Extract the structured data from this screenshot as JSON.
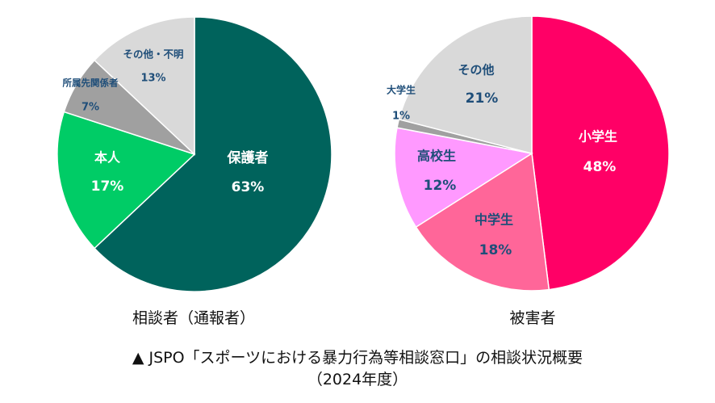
{
  "chart_data": [
    {
      "type": "pie",
      "title": "相談者（通報者）",
      "slices": [
        {
          "label": "保護者",
          "value": 63,
          "value_label": "63%",
          "color": "#00635C",
          "label_color": "#FFFFFF"
        },
        {
          "label": "本人",
          "value": 17,
          "value_label": "17%",
          "color": "#00CC66",
          "label_color": "#FFFFFF"
        },
        {
          "label": "所属先関係者",
          "value": 7,
          "value_label": "7%",
          "color": "#A0A0A0",
          "label_color": "#1F4E79"
        },
        {
          "label": "その他・不明",
          "value": 13,
          "value_label": "13%",
          "color": "#D9D9D9",
          "label_color": "#1F4E79"
        }
      ]
    },
    {
      "type": "pie",
      "title": "被害者",
      "slices": [
        {
          "label": "小学生",
          "value": 48,
          "value_label": "48%",
          "color": "#FF0066",
          "label_color": "#FFFFFF"
        },
        {
          "label": "中学生",
          "value": 18,
          "value_label": "18%",
          "color": "#FF6699",
          "label_color": "#1F4E79"
        },
        {
          "label": "高校生",
          "value": 12,
          "value_label": "12%",
          "color": "#FF99FF",
          "label_color": "#1F4E79"
        },
        {
          "label": "大学生",
          "value": 1,
          "value_label": "1%",
          "color": "#A0A0A0",
          "label_color": "#1F4E79"
        },
        {
          "label": "その他",
          "value": 21,
          "value_label": "21%",
          "color": "#D9D9D9",
          "label_color": "#1F4E79"
        }
      ]
    }
  ],
  "caption_line1": "▲ JSPO「スポーツにおける暴力行為等相談窓口」の相談状況概要",
  "caption_line2": "（2024年度）"
}
